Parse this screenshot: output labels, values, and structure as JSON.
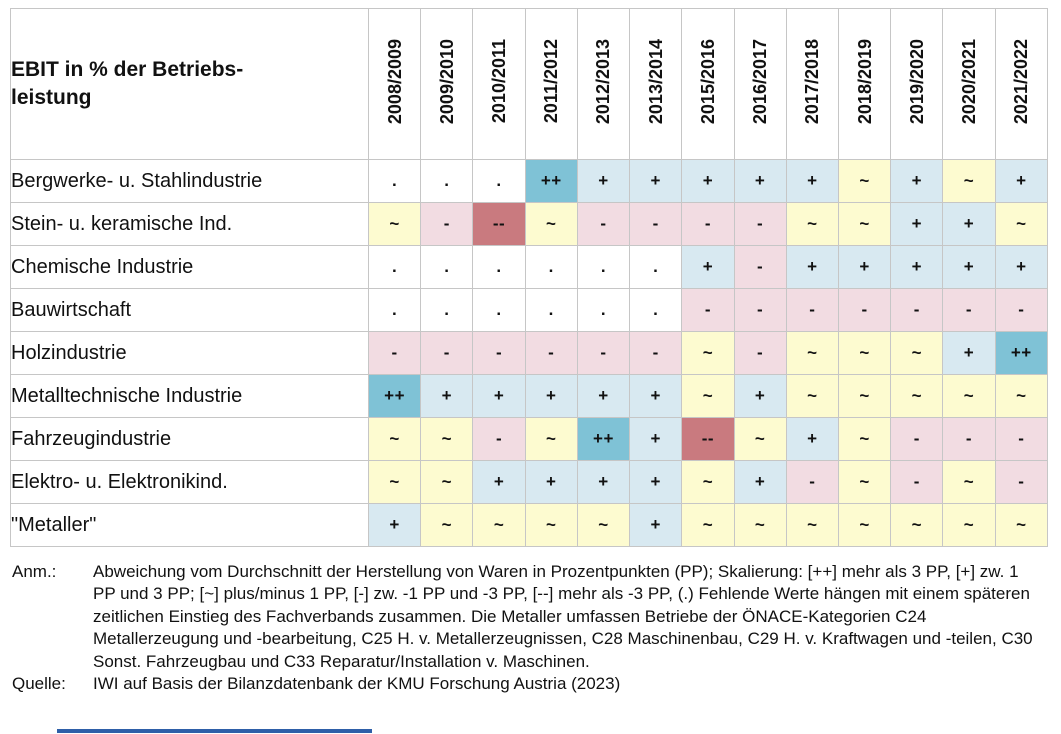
{
  "chart_data": {
    "type": "heatmap",
    "title_line1": "EBIT in % der Betriebs-",
    "title_line2": "leistung",
    "columns": [
      "2008/2009",
      "2009/2010",
      "2010/2011",
      "2011/2012",
      "2012/2013",
      "2013/2014",
      "2015/2016",
      "2016/2017",
      "2017/2018",
      "2018/2019",
      "2019/2020",
      "2020/2021",
      "2021/2022"
    ],
    "rows": [
      {
        "label": "Bergwerke- u. Stahlindustrie",
        "values": [
          ".",
          ".",
          ".",
          "++",
          "+",
          "+",
          "+",
          "+",
          "+",
          "~",
          "+",
          "~",
          "+"
        ]
      },
      {
        "label": "Stein- u. keramische Ind.",
        "values": [
          "~",
          "-",
          "--",
          "~",
          "-",
          "-",
          "-",
          "-",
          "~",
          "~",
          "+",
          "+",
          "~"
        ]
      },
      {
        "label": "Chemische Industrie",
        "values": [
          ".",
          ".",
          ".",
          ".",
          ".",
          ".",
          "+",
          "-",
          "+",
          "+",
          "+",
          "+",
          "+"
        ]
      },
      {
        "label": "Bauwirtschaft",
        "values": [
          ".",
          ".",
          ".",
          ".",
          ".",
          ".",
          "-",
          "-",
          "-",
          "-",
          "-",
          "-",
          "-"
        ]
      },
      {
        "label": "Holzindustrie",
        "values": [
          "-",
          "-",
          "-",
          "-",
          "-",
          "-",
          "~",
          "-",
          "~",
          "~",
          "~",
          "+",
          "++"
        ]
      },
      {
        "label": "Metalltechnische Industrie",
        "values": [
          "++",
          "+",
          "+",
          "+",
          "+",
          "+",
          "~",
          "+",
          "~",
          "~",
          "~",
          "~",
          "~"
        ]
      },
      {
        "label": "Fahrzeugindustrie",
        "values": [
          "~",
          "~",
          "-",
          "~",
          "++",
          "+",
          "--",
          "~",
          "+",
          "~",
          "-",
          "-",
          "-"
        ]
      },
      {
        "label": "Elektro- u. Elektronikind.",
        "values": [
          "~",
          "~",
          "+",
          "+",
          "+",
          "+",
          "~",
          "+",
          "-",
          "~",
          "-",
          "~",
          "-"
        ]
      },
      {
        "label": "\"Metaller\"",
        "values": [
          "+",
          "~",
          "~",
          "~",
          "~",
          "+",
          "~",
          "~",
          "~",
          "~",
          "~",
          "~",
          "~"
        ]
      }
    ],
    "symbol_colors": {
      "++": "#7fc2d6",
      "+": "#d8e9f1",
      "~": "#fdfbd0",
      "-": "#f2dce2",
      "--": "#c97a7f",
      ".": "#ffffff"
    },
    "symbol_scale": "[++] mehr als 3 PP, [+] zw. 1 PP und 3 PP, [~] plus/minus 1 PP, [-] zw. -1 PP und -3 PP, [--] mehr als -3 PP, (.) fehlende Werte"
  },
  "footnote": {
    "anm_label": "Anm.:",
    "anm_text": "Abweichung vom Durchschnitt der Herstellung von Waren in Prozentpunkten (PP); Skalierung: [++] mehr als 3 PP, [+] zw. 1 PP und 3 PP; [~] plus/minus 1 PP, [-] zw. -1 PP und -3 PP, [--] mehr als -3 PP, (.) Fehlende Werte hängen mit einem späteren zeitlichen Einstieg des Fachverbands zusammen. Die Metaller umfassen Betriebe der ÖNACE-Kategorien C24 Metallerzeugung und -bearbeitung, C25 H. v. Metallerzeugnissen, C28 Maschinenbau, C29 H. v. Kraftwagen und -teilen, C30 Sonst. Fahrzeugbau und C33 Reparatur/Installation v. Maschinen.",
    "quelle_label": "Quelle:",
    "quelle_text": "IWI auf Basis der Bilanzdatenbank der KMU Forschung Austria (2023)"
  },
  "accent_rule_color": "#2e5fa8"
}
